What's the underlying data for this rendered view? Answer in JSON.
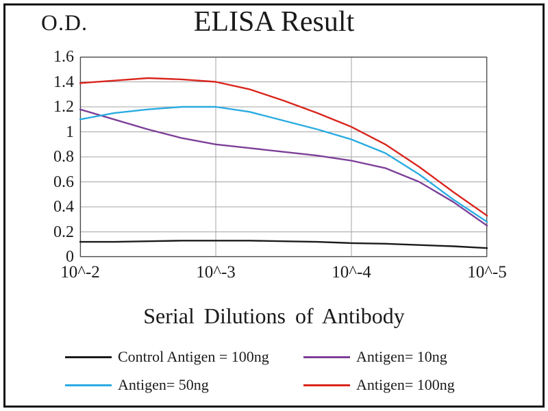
{
  "chart_data": {
    "type": "line",
    "title": "ELISA Result",
    "ylabel": "O.D.",
    "xlabel": "Serial Dilutions of Antibody",
    "ylim": [
      0,
      1.6
    ],
    "grid": true,
    "grid_color": "#a3a3a3",
    "axis_box_color": "#4a4a4a",
    "legend_position": "bottom",
    "x_axis_note": "x values are in decade units where 0 = 10^-2 and 3 = 10^-5 antibody dilution",
    "x": [
      0,
      0.25,
      0.5,
      0.75,
      1,
      1.25,
      1.5,
      1.75,
      2,
      2.25,
      2.5,
      2.75,
      3
    ],
    "x_tick_values": [
      0,
      1,
      2,
      3
    ],
    "x_tick_labels": [
      "10^-2",
      "10^-3",
      "10^-4",
      "10^-5"
    ],
    "y_tick_values": [
      1.6,
      1.4,
      1.2,
      1.0,
      0.8,
      0.6,
      0.4,
      0.2,
      0
    ],
    "y_tick_labels": [
      "1.6",
      "1.4",
      "1.2",
      "1",
      "0.8",
      "0.6",
      "0.4",
      "0.2",
      "0"
    ],
    "series": [
      {
        "name": "Control Antigen = 100ng",
        "color": "#1b1b1b",
        "values": [
          0.12,
          0.12,
          0.125,
          0.13,
          0.13,
          0.13,
          0.125,
          0.12,
          0.11,
          0.105,
          0.095,
          0.085,
          0.07
        ]
      },
      {
        "name": "Antigen= 10ng",
        "color": "#7d3f98",
        "values": [
          1.18,
          1.1,
          1.02,
          0.95,
          0.9,
          0.87,
          0.84,
          0.81,
          0.77,
          0.71,
          0.6,
          0.44,
          0.25
        ]
      },
      {
        "name": "Antigen= 50ng",
        "color": "#29abe2",
        "values": [
          1.1,
          1.15,
          1.18,
          1.2,
          1.2,
          1.16,
          1.09,
          1.02,
          0.94,
          0.83,
          0.66,
          0.46,
          0.28
        ]
      },
      {
        "name": "Antigen= 100ng",
        "color": "#d9251d",
        "values": [
          1.39,
          1.41,
          1.43,
          1.42,
          1.4,
          1.34,
          1.25,
          1.15,
          1.04,
          0.9,
          0.72,
          0.52,
          0.33
        ]
      }
    ]
  }
}
